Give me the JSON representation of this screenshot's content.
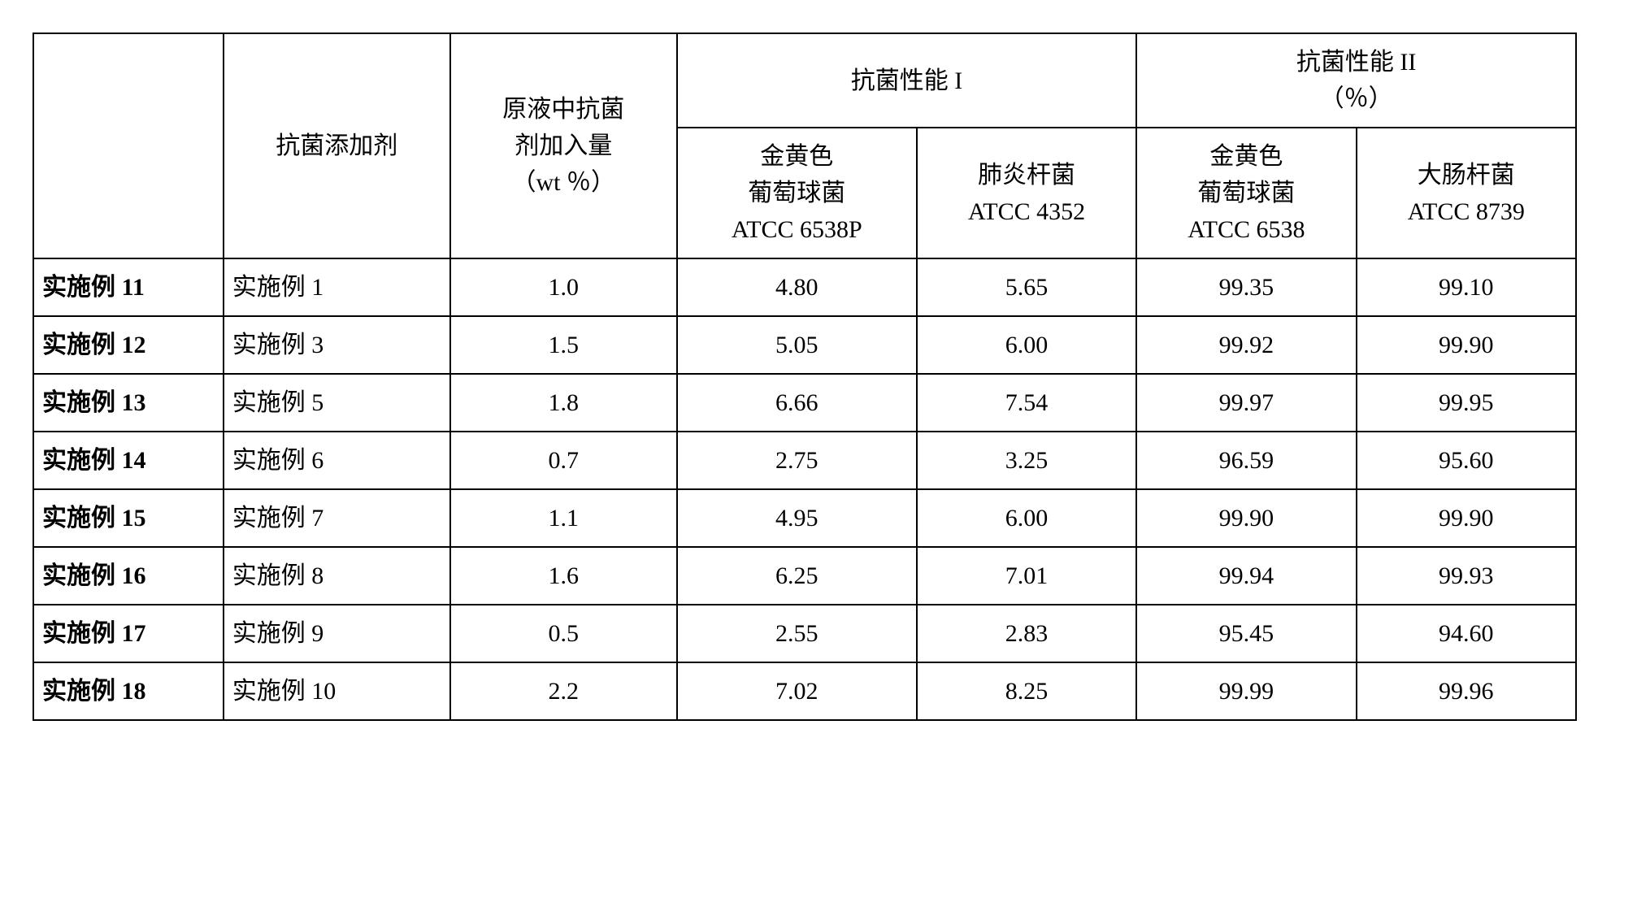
{
  "table": {
    "headers": {
      "blank": "",
      "additive": "抗菌添加剂",
      "amount": "原液中抗菌\n剂加入量\n（wt ％）",
      "perf1": "抗菌性能 I",
      "perf2_line1": "抗菌性能 II",
      "perf2_line2": "（％）",
      "sub_sa_6538p_l1": "金黄色",
      "sub_sa_6538p_l2": "葡萄球菌",
      "sub_sa_6538p_l3": "ATCC 6538P",
      "sub_kp_l1": "肺炎杆菌",
      "sub_kp_l2": "ATCC 4352",
      "sub_sa_6538_l1": "金黄色",
      "sub_sa_6538_l2": "葡萄球菌",
      "sub_sa_6538_l3": "ATCC 6538",
      "sub_ec_l1": "大肠杆菌",
      "sub_ec_l2": "ATCC 8739"
    },
    "rows": [
      {
        "label": "实施例 11",
        "additive": "实施例 1",
        "amount": "1.0",
        "p1a": "4.80",
        "p1b": "5.65",
        "p2a": "99.35",
        "p2b": "99.10"
      },
      {
        "label": "实施例 12",
        "additive": "实施例 3",
        "amount": "1.5",
        "p1a": "5.05",
        "p1b": "6.00",
        "p2a": "99.92",
        "p2b": "99.90"
      },
      {
        "label": "实施例 13",
        "additive": "实施例 5",
        "amount": "1.8",
        "p1a": "6.66",
        "p1b": "7.54",
        "p2a": "99.97",
        "p2b": "99.95"
      },
      {
        "label": "实施例 14",
        "additive": "实施例 6",
        "amount": "0.7",
        "p1a": "2.75",
        "p1b": "3.25",
        "p2a": "96.59",
        "p2b": "95.60"
      },
      {
        "label": "实施例 15",
        "additive": "实施例 7",
        "amount": "1.1",
        "p1a": "4.95",
        "p1b": "6.00",
        "p2a": "99.90",
        "p2b": "99.90"
      },
      {
        "label": "实施例 16",
        "additive": "实施例 8",
        "amount": "1.6",
        "p1a": "6.25",
        "p1b": "7.01",
        "p2a": "99.94",
        "p2b": "99.93"
      },
      {
        "label": "实施例 17",
        "additive": "实施例 9",
        "amount": "0.5",
        "p1a": "2.55",
        "p1b": "2.83",
        "p2a": "95.45",
        "p2b": "94.60"
      },
      {
        "label": "实施例 18",
        "additive": "实施例 10",
        "amount": "2.2",
        "p1a": "7.02",
        "p1b": "8.25",
        "p2a": "99.99",
        "p2b": "99.96"
      }
    ],
    "style": {
      "border_color": "#000000",
      "background_color": "#ffffff",
      "font_size_pt": 22,
      "cell_text_color": "#000000"
    }
  }
}
